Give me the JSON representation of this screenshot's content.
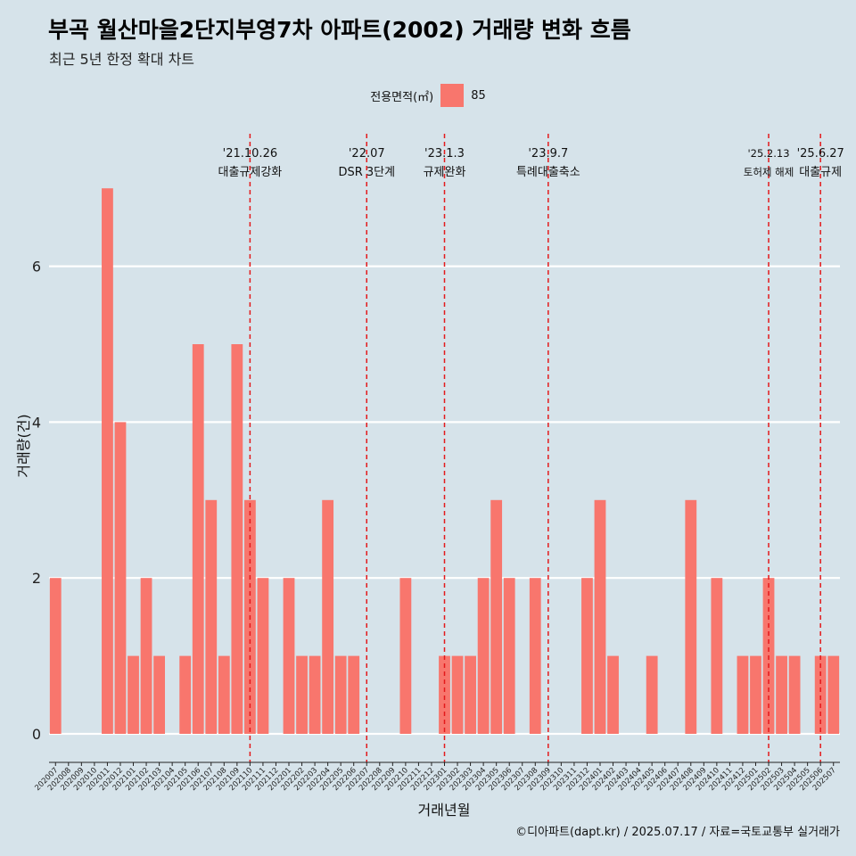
{
  "title": "부곡 월산마을2단지부영7차 아파트(2002) 거래량 변화 흐름",
  "subtitle": "최근 5년 한정 확대 차트",
  "caption": "©디아파트(dapt.kr) / 2025.07.17 / 자료=국토교통부 실거래가",
  "colors": {
    "background": "#d6e3ea",
    "bar": "#f8766d",
    "gridline": "#ffffff",
    "event_line": "#e31a1c"
  },
  "chart_data": {
    "type": "bar",
    "xlabel": "거래년월",
    "ylabel": "거래량(건)",
    "ylim": [
      -0.3,
      7.6
    ],
    "yticks": [
      0,
      2,
      4,
      6
    ],
    "legend": {
      "title": "전용면적(㎡)",
      "entries": [
        "85"
      ],
      "position": "top"
    },
    "categories": [
      "202007",
      "202008",
      "202009",
      "202010",
      "202011",
      "202012",
      "202101",
      "202102",
      "202103",
      "202104",
      "202105",
      "202106",
      "202107",
      "202108",
      "202109",
      "202110",
      "202111",
      "202112",
      "202201",
      "202202",
      "202203",
      "202204",
      "202205",
      "202206",
      "202207",
      "202208",
      "202209",
      "202210",
      "202211",
      "202212",
      "202301",
      "202302",
      "202303",
      "202304",
      "202305",
      "202306",
      "202307",
      "202308",
      "202309",
      "202310",
      "202311",
      "202312",
      "202401",
      "202402",
      "202403",
      "202404",
      "202405",
      "202406",
      "202407",
      "202408",
      "202409",
      "202410",
      "202411",
      "202412",
      "202501",
      "202502",
      "202503",
      "202504",
      "202505",
      "202506",
      "202507"
    ],
    "series": [
      {
        "name": "85",
        "values": [
          2,
          0,
          0,
          0,
          7,
          4,
          1,
          2,
          1,
          0,
          1,
          5,
          3,
          1,
          5,
          3,
          2,
          0,
          2,
          1,
          1,
          3,
          1,
          1,
          0,
          0,
          0,
          2,
          0,
          0,
          1,
          1,
          1,
          2,
          3,
          2,
          0,
          2,
          0,
          0,
          0,
          2,
          3,
          1,
          0,
          0,
          1,
          0,
          0,
          3,
          0,
          2,
          0,
          1,
          1,
          2,
          1,
          1,
          0,
          1,
          1
        ]
      }
    ],
    "annotations": [
      {
        "date": "'21.10.26",
        "label": "대출규제강화",
        "x": "202110"
      },
      {
        "date": "'22.07",
        "label": "DSR 3단계",
        "x": "202207"
      },
      {
        "date": "'23.1.3",
        "label": "규제완화",
        "x": "202301"
      },
      {
        "date": "'23.9.7",
        "label": "특례대출축소",
        "x": "202309"
      },
      {
        "date": "'25.2.13",
        "label": "토허제 해제",
        "x": "202502"
      },
      {
        "date": "'25.6.27",
        "label": "대출규제",
        "x": "202506"
      }
    ]
  }
}
